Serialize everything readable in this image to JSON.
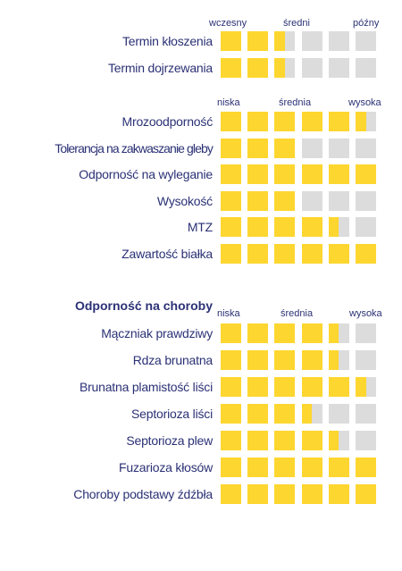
{
  "colors": {
    "text": "#2b3175",
    "filled": "#fed630",
    "empty": "#dcdcdc"
  },
  "timing": {
    "scale_labels": [
      "wczesny",
      "średni",
      "późny"
    ],
    "rows": [
      {
        "label": "Termin kłoszenia",
        "value": 2.5
      },
      {
        "label": "Termin dojrzewania",
        "value": 2.5
      }
    ]
  },
  "traits": {
    "scale_labels": [
      "niska",
      "średnia",
      "wysoka"
    ],
    "rows": [
      {
        "label": "Mrozoodporność",
        "value": 5.5
      },
      {
        "label": "Tolerancja na zakwaszanie gleby",
        "value": 3
      },
      {
        "label": "Odporność na wyleganie",
        "value": 6
      },
      {
        "label": "Wysokość",
        "value": 3
      },
      {
        "label": "MTZ",
        "value": 4.5
      },
      {
        "label": "Zawartość białka",
        "value": 6
      }
    ]
  },
  "disease": {
    "title": "Odporność na choroby",
    "scale_labels": [
      "niska",
      "średnia",
      "wysoka"
    ],
    "rows": [
      {
        "label": "Mączniak prawdziwy",
        "value": 4.5
      },
      {
        "label": "Rdza brunatna",
        "value": 4.5
      },
      {
        "label": "Brunatna plamistość liści",
        "value": 5.5
      },
      {
        "label": "Septorioza liści",
        "value": 3.5
      },
      {
        "label": "Septorioza plew",
        "value": 4.5
      },
      {
        "label": "Fuzarioza kłosów",
        "value": 6
      },
      {
        "label": "Choroby podstawy źdźbła",
        "value": 6
      }
    ]
  }
}
